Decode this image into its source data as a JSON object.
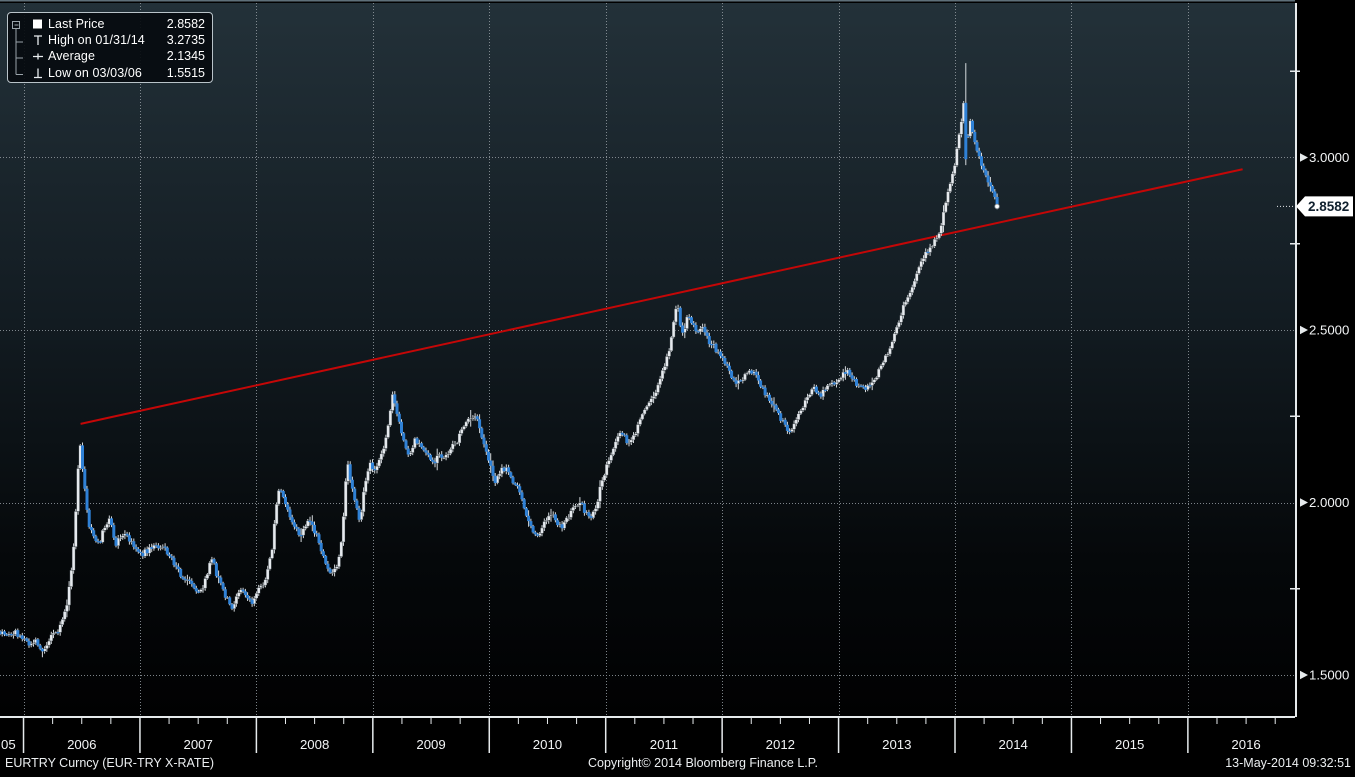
{
  "legend": {
    "rows": [
      {
        "icon": "last-price-square",
        "label": "Last Price",
        "value": "2.8582"
      },
      {
        "icon": "high-marker",
        "label": "High on 01/31/14",
        "value": "3.2735"
      },
      {
        "icon": "average-marker",
        "label": "Average",
        "value": "2.1345"
      },
      {
        "icon": "low-marker",
        "label": "Low on 03/03/06",
        "value": "1.5515"
      }
    ]
  },
  "footer": {
    "symbol": "EURTRY Curncy (EUR-TRY X-RATE)",
    "copyright": "Copyright© 2014 Bloomberg Finance L.P.",
    "timestamp": "13-May-2014 09:32:51"
  },
  "colors": {
    "bg_top": "#233139",
    "bg_mid": "#121b21",
    "bg_low": "#05080a",
    "bg_bottom": "#010102",
    "grid": "#929aa0",
    "axis": "#e6eaec",
    "text": "#f2f4f5",
    "up_bar": "#e6eaee",
    "up_stroke": "#2a3136",
    "down_bar": "#2f81d6",
    "wick": "#d4d9dd",
    "trend": "#c40707",
    "badge_bg": "#ffffff",
    "badge_text": "#10202e"
  },
  "chart_data": {
    "type": "candlestick",
    "title": "EURTRY Curncy (EUR-TRY X-RATE)",
    "xlabel": "",
    "ylabel": "",
    "x_range": [
      2005.798,
      2016.92
    ],
    "y_range": [
      1.3783,
      3.4478
    ],
    "grid": "dotted",
    "legend_position": "top-left",
    "bars_per_year": 52.2,
    "y_major_ticks": [
      1.5,
      2.0,
      2.5,
      3.0
    ],
    "y_major_labels": [
      "1.5000",
      "2.0000",
      "2.5000",
      "3.0000"
    ],
    "y_minor_ticks": [
      1.75,
      2.25,
      2.75,
      3.25
    ],
    "x_year_ticks": [
      2006,
      2007,
      2008,
      2009,
      2010,
      2011,
      2012,
      2013,
      2014,
      2015,
      2016
    ],
    "x_tick_labels": [
      "05",
      "2006",
      "2007",
      "2008",
      "2009",
      "2010",
      "2011",
      "2012",
      "2013",
      "2014",
      "2015",
      "2016"
    ],
    "last_price": 2.8582,
    "last_price_label": "2.8582",
    "high": {
      "date_label": "01/31/14",
      "value": 3.2735,
      "t": 2014.085
    },
    "low": {
      "date_label": "03/03/06",
      "value": 1.5515,
      "t": 2006.17
    },
    "average": 2.1345,
    "series_end_t": 2014.37,
    "trend_line": {
      "t1": 2006.49,
      "v1": 2.228,
      "t2": 2016.47,
      "v2": 2.966
    },
    "monthly_close_anchors": [
      [
        2005.8,
        1.627
      ],
      [
        2005.86,
        1.612
      ],
      [
        2005.93,
        1.624
      ],
      [
        2006.0,
        1.6
      ],
      [
        2006.06,
        1.585
      ],
      [
        2006.11,
        1.602
      ],
      [
        2006.15,
        1.574
      ],
      [
        2006.18,
        1.568
      ],
      [
        2006.23,
        1.606
      ],
      [
        2006.29,
        1.622
      ],
      [
        2006.34,
        1.66
      ],
      [
        2006.38,
        1.718
      ],
      [
        2006.42,
        1.826
      ],
      [
        2006.45,
        1.972
      ],
      [
        2006.48,
        2.188
      ],
      [
        2006.5,
        2.126
      ],
      [
        2006.53,
        2.022
      ],
      [
        2006.56,
        1.932
      ],
      [
        2006.6,
        1.902
      ],
      [
        2006.65,
        1.884
      ],
      [
        2006.7,
        1.93
      ],
      [
        2006.74,
        1.952
      ],
      [
        2006.79,
        1.88
      ],
      [
        2006.83,
        1.9
      ],
      [
        2006.88,
        1.914
      ],
      [
        2006.92,
        1.882
      ],
      [
        2006.96,
        1.868
      ],
      [
        2007.0,
        1.846
      ],
      [
        2007.06,
        1.86
      ],
      [
        2007.12,
        1.876
      ],
      [
        2007.17,
        1.862
      ],
      [
        2007.21,
        1.872
      ],
      [
        2007.25,
        1.846
      ],
      [
        2007.29,
        1.824
      ],
      [
        2007.33,
        1.8
      ],
      [
        2007.37,
        1.786
      ],
      [
        2007.42,
        1.766
      ],
      [
        2007.46,
        1.754
      ],
      [
        2007.5,
        1.736
      ],
      [
        2007.54,
        1.746
      ],
      [
        2007.58,
        1.8
      ],
      [
        2007.62,
        1.846
      ],
      [
        2007.65,
        1.798
      ],
      [
        2007.7,
        1.754
      ],
      [
        2007.75,
        1.72
      ],
      [
        2007.79,
        1.696
      ],
      [
        2007.83,
        1.722
      ],
      [
        2007.87,
        1.746
      ],
      [
        2007.92,
        1.726
      ],
      [
        2007.96,
        1.706
      ],
      [
        2008.0,
        1.734
      ],
      [
        2008.05,
        1.762
      ],
      [
        2008.09,
        1.79
      ],
      [
        2008.13,
        1.852
      ],
      [
        2008.17,
        1.986
      ],
      [
        2008.2,
        2.04
      ],
      [
        2008.24,
        2.006
      ],
      [
        2008.28,
        1.964
      ],
      [
        2008.33,
        1.922
      ],
      [
        2008.38,
        1.908
      ],
      [
        2008.43,
        1.942
      ],
      [
        2008.47,
        1.95
      ],
      [
        2008.52,
        1.898
      ],
      [
        2008.56,
        1.852
      ],
      [
        2008.61,
        1.816
      ],
      [
        2008.65,
        1.788
      ],
      [
        2008.7,
        1.826
      ],
      [
        2008.74,
        1.92
      ],
      [
        2008.78,
        2.12
      ],
      [
        2008.81,
        2.06
      ],
      [
        2008.85,
        1.992
      ],
      [
        2008.89,
        1.95
      ],
      [
        2008.93,
        2.046
      ],
      [
        2008.97,
        2.116
      ],
      [
        2009.01,
        2.088
      ],
      [
        2009.06,
        2.128
      ],
      [
        2009.1,
        2.166
      ],
      [
        2009.14,
        2.232
      ],
      [
        2009.17,
        2.31
      ],
      [
        2009.2,
        2.276
      ],
      [
        2009.24,
        2.212
      ],
      [
        2009.28,
        2.152
      ],
      [
        2009.32,
        2.136
      ],
      [
        2009.36,
        2.178
      ],
      [
        2009.4,
        2.164
      ],
      [
        2009.44,
        2.152
      ],
      [
        2009.48,
        2.134
      ],
      [
        2009.52,
        2.114
      ],
      [
        2009.56,
        2.136
      ],
      [
        2009.6,
        2.12
      ],
      [
        2009.65,
        2.142
      ],
      [
        2009.69,
        2.164
      ],
      [
        2009.73,
        2.182
      ],
      [
        2009.77,
        2.212
      ],
      [
        2009.81,
        2.246
      ],
      [
        2009.85,
        2.234
      ],
      [
        2009.88,
        2.252
      ],
      [
        2009.92,
        2.214
      ],
      [
        2009.96,
        2.168
      ],
      [
        2010.0,
        2.118
      ],
      [
        2010.04,
        2.056
      ],
      [
        2010.08,
        2.076
      ],
      [
        2010.12,
        2.102
      ],
      [
        2010.17,
        2.086
      ],
      [
        2010.21,
        2.058
      ],
      [
        2010.25,
        2.034
      ],
      [
        2010.29,
        1.994
      ],
      [
        2010.33,
        1.958
      ],
      [
        2010.37,
        1.924
      ],
      [
        2010.42,
        1.9
      ],
      [
        2010.46,
        1.936
      ],
      [
        2010.5,
        1.956
      ],
      [
        2010.54,
        1.964
      ],
      [
        2010.58,
        1.94
      ],
      [
        2010.62,
        1.924
      ],
      [
        2010.67,
        1.956
      ],
      [
        2010.71,
        1.984
      ],
      [
        2010.75,
        2.0
      ],
      [
        2010.79,
        1.994
      ],
      [
        2010.83,
        1.968
      ],
      [
        2010.88,
        1.954
      ],
      [
        2010.92,
        1.992
      ],
      [
        2010.96,
        2.058
      ],
      [
        2011.0,
        2.098
      ],
      [
        2011.04,
        2.134
      ],
      [
        2011.08,
        2.164
      ],
      [
        2011.12,
        2.204
      ],
      [
        2011.17,
        2.184
      ],
      [
        2011.21,
        2.17
      ],
      [
        2011.25,
        2.198
      ],
      [
        2011.29,
        2.238
      ],
      [
        2011.33,
        2.264
      ],
      [
        2011.37,
        2.288
      ],
      [
        2011.42,
        2.314
      ],
      [
        2011.46,
        2.35
      ],
      [
        2011.5,
        2.386
      ],
      [
        2011.54,
        2.43
      ],
      [
        2011.58,
        2.52
      ],
      [
        2011.61,
        2.584
      ],
      [
        2011.63,
        2.548
      ],
      [
        2011.65,
        2.476
      ],
      [
        2011.69,
        2.518
      ],
      [
        2011.71,
        2.548
      ],
      [
        2011.75,
        2.514
      ],
      [
        2011.79,
        2.494
      ],
      [
        2011.83,
        2.51
      ],
      [
        2011.87,
        2.476
      ],
      [
        2011.92,
        2.456
      ],
      [
        2011.96,
        2.436
      ],
      [
        2012.0,
        2.418
      ],
      [
        2012.04,
        2.39
      ],
      [
        2012.08,
        2.364
      ],
      [
        2012.12,
        2.346
      ],
      [
        2012.17,
        2.36
      ],
      [
        2012.21,
        2.376
      ],
      [
        2012.25,
        2.384
      ],
      [
        2012.29,
        2.364
      ],
      [
        2012.33,
        2.34
      ],
      [
        2012.37,
        2.316
      ],
      [
        2012.42,
        2.294
      ],
      [
        2012.46,
        2.268
      ],
      [
        2012.5,
        2.244
      ],
      [
        2012.54,
        2.224
      ],
      [
        2012.58,
        2.198
      ],
      [
        2012.62,
        2.224
      ],
      [
        2012.67,
        2.258
      ],
      [
        2012.71,
        2.29
      ],
      [
        2012.75,
        2.318
      ],
      [
        2012.79,
        2.336
      ],
      [
        2012.83,
        2.31
      ],
      [
        2012.88,
        2.324
      ],
      [
        2012.92,
        2.34
      ],
      [
        2012.96,
        2.35
      ],
      [
        2013.0,
        2.36
      ],
      [
        2013.04,
        2.374
      ],
      [
        2013.08,
        2.386
      ],
      [
        2013.12,
        2.36
      ],
      [
        2013.17,
        2.34
      ],
      [
        2013.21,
        2.33
      ],
      [
        2013.25,
        2.336
      ],
      [
        2013.29,
        2.35
      ],
      [
        2013.33,
        2.37
      ],
      [
        2013.37,
        2.396
      ],
      [
        2013.42,
        2.43
      ],
      [
        2013.46,
        2.474
      ],
      [
        2013.5,
        2.51
      ],
      [
        2013.54,
        2.55
      ],
      [
        2013.58,
        2.586
      ],
      [
        2013.62,
        2.62
      ],
      [
        2013.67,
        2.664
      ],
      [
        2013.71,
        2.7
      ],
      [
        2013.75,
        2.724
      ],
      [
        2013.79,
        2.744
      ],
      [
        2013.83,
        2.762
      ],
      [
        2013.88,
        2.8
      ],
      [
        2013.92,
        2.864
      ],
      [
        2013.96,
        2.93
      ],
      [
        2014.0,
        2.984
      ],
      [
        2014.04,
        3.07
      ],
      [
        2014.08,
        3.185
      ],
      [
        2014.1,
        2.995
      ],
      [
        2014.12,
        3.115
      ],
      [
        2014.16,
        3.06
      ],
      [
        2014.2,
        3.002
      ],
      [
        2014.24,
        2.976
      ],
      [
        2014.28,
        2.94
      ],
      [
        2014.32,
        2.912
      ],
      [
        2014.37,
        2.858
      ]
    ]
  }
}
